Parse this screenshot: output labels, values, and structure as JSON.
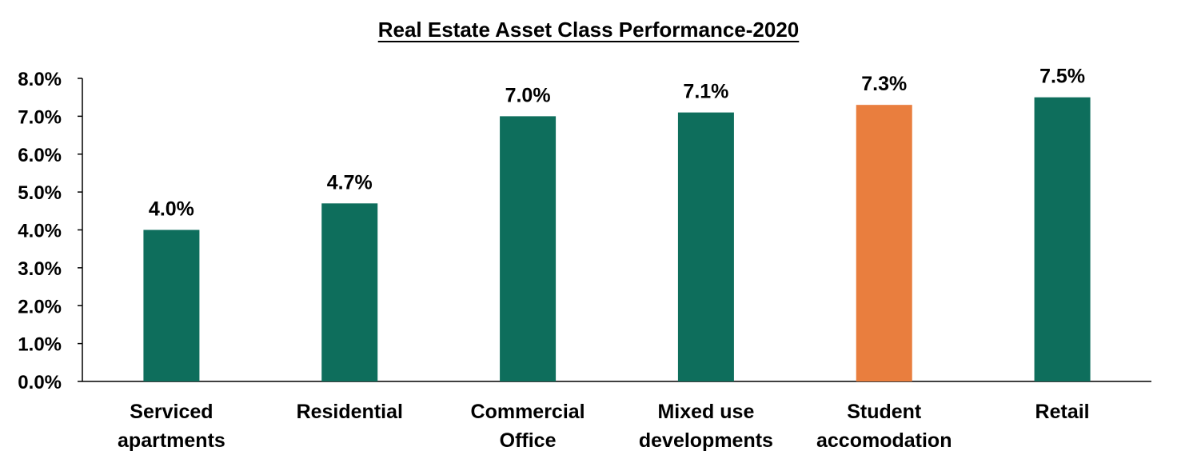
{
  "chart_data": {
    "type": "bar",
    "title": "Real Estate Asset Class Performance-2020",
    "xlabel": "",
    "ylabel": "",
    "categories": [
      [
        "Serviced",
        "apartments"
      ],
      [
        "Residential"
      ],
      [
        "Commercial",
        "Office"
      ],
      [
        "Mixed use",
        "developments"
      ],
      [
        "Student",
        "accomodation"
      ],
      [
        "Retail"
      ]
    ],
    "values": [
      4.0,
      4.7,
      7.0,
      7.1,
      7.3,
      7.5
    ],
    "value_labels": [
      "4.0%",
      "4.7%",
      "7.0%",
      "7.1%",
      "7.3%",
      "7.5%"
    ],
    "yticks": [
      0,
      1,
      2,
      3,
      4,
      5,
      6,
      7,
      8
    ],
    "ytick_labels": [
      "0.0%",
      "1.0%",
      "2.0%",
      "3.0%",
      "4.0%",
      "5.0%",
      "6.0%",
      "7.0%",
      "8.0%"
    ],
    "ylim": [
      0,
      8
    ],
    "grid": false,
    "legend": "none",
    "colors": {
      "default_bar": "#0E6E5C",
      "highlight_bar": "#E97E3E",
      "axis": "#000000"
    },
    "highlight_index": 4
  }
}
